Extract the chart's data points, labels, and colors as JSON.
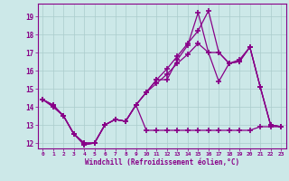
{
  "bg_color": "#cce8e8",
  "grid_color": "#aacccc",
  "line_color": "#880088",
  "text_color": "#880088",
  "xlabel": "Windchill (Refroidissement éolien,°C)",
  "xlim": [
    -0.5,
    23.5
  ],
  "ylim": [
    11.7,
    19.7
  ],
  "yticks": [
    12,
    13,
    14,
    15,
    16,
    17,
    18,
    19
  ],
  "xticks": [
    0,
    1,
    2,
    3,
    4,
    5,
    6,
    7,
    8,
    9,
    10,
    11,
    12,
    13,
    14,
    15,
    16,
    17,
    18,
    19,
    20,
    21,
    22,
    23
  ],
  "series1_x": [
    0,
    1,
    2,
    3,
    4,
    5,
    6,
    7,
    8,
    9,
    10,
    11,
    12,
    13,
    14,
    15,
    16,
    17,
    18,
    19,
    20,
    21,
    22,
    23
  ],
  "series1_y": [
    14.4,
    14.1,
    13.5,
    12.5,
    11.9,
    12.0,
    13.0,
    13.3,
    13.2,
    14.1,
    12.7,
    12.7,
    12.7,
    12.7,
    12.7,
    12.7,
    12.7,
    12.7,
    12.7,
    12.7,
    12.7,
    12.9,
    12.9,
    12.9
  ],
  "series2_x": [
    0,
    1,
    2,
    3,
    4,
    5,
    6,
    7,
    8,
    9,
    10,
    11,
    12,
    13,
    14,
    15,
    16,
    17,
    18,
    19,
    20,
    21,
    22,
    23
  ],
  "series2_y": [
    14.4,
    14.1,
    13.5,
    12.5,
    11.9,
    12.0,
    13.0,
    13.3,
    13.2,
    14.1,
    14.8,
    15.5,
    15.5,
    16.6,
    17.4,
    19.2,
    17.0,
    15.4,
    16.4,
    16.5,
    17.3,
    15.1,
    13.0,
    12.9
  ],
  "series3_x": [
    0,
    1,
    2,
    3,
    4,
    5,
    6,
    7,
    8,
    9,
    10,
    11,
    12,
    13,
    14,
    15,
    16,
    17,
    18,
    19,
    20,
    21,
    22,
    23
  ],
  "series3_y": [
    14.4,
    14.0,
    13.5,
    12.5,
    12.0,
    12.0,
    13.0,
    13.3,
    13.2,
    14.1,
    14.8,
    15.3,
    15.8,
    16.4,
    16.9,
    17.5,
    17.0,
    17.0,
    16.4,
    16.6,
    17.3,
    15.1,
    13.0,
    12.9
  ],
  "series4_x": [
    0,
    1,
    2,
    3,
    4,
    5,
    6,
    7,
    8,
    9,
    10,
    11,
    12,
    13,
    14,
    15,
    16,
    17,
    18,
    19,
    20,
    21,
    22,
    23
  ],
  "series4_y": [
    14.4,
    14.0,
    13.5,
    12.5,
    12.0,
    12.0,
    13.0,
    13.3,
    13.2,
    14.1,
    14.8,
    15.5,
    16.1,
    16.8,
    17.5,
    18.2,
    19.3,
    17.0,
    16.4,
    16.5,
    17.3,
    15.1,
    13.0,
    12.9
  ]
}
